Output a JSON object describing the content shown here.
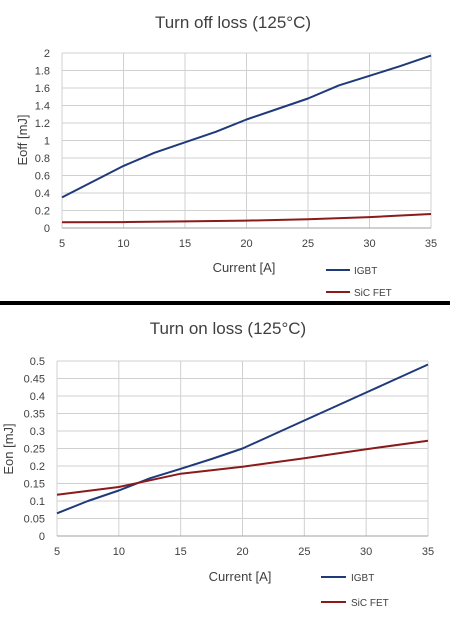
{
  "chart_data": [
    {
      "type": "line",
      "title": "Turn off loss (125°C)",
      "xlabel": "Current [A]",
      "ylabel": "Eoff [mJ]",
      "xlim": [
        5,
        35
      ],
      "ylim": [
        0,
        2
      ],
      "xticks": [
        5,
        10,
        15,
        20,
        25,
        30,
        35
      ],
      "yticks": [
        0,
        0.2,
        0.4,
        0.6,
        0.8,
        1,
        1.2,
        1.4,
        1.6,
        1.8,
        2
      ],
      "grid": true,
      "legend_position": "bottom-right",
      "series": [
        {
          "name": "IGBT",
          "color": "#1f3a7a",
          "x": [
            5,
            7.5,
            10,
            12.5,
            15,
            17.5,
            20,
            22.5,
            25,
            27.5,
            30,
            32.5,
            35
          ],
          "y": [
            0.35,
            0.53,
            0.71,
            0.86,
            0.98,
            1.1,
            1.24,
            1.36,
            1.48,
            1.63,
            1.74,
            1.85,
            1.97
          ]
        },
        {
          "name": "SiC FET",
          "color": "#8b1a1a",
          "x": [
            5,
            10,
            15,
            20,
            25,
            30,
            35
          ],
          "y": [
            0.065,
            0.068,
            0.075,
            0.085,
            0.1,
            0.125,
            0.16
          ]
        }
      ]
    },
    {
      "type": "line",
      "title": "Turn on loss (125°C)",
      "xlabel": "Current [A]",
      "ylabel": "Eon [mJ]",
      "xlim": [
        5,
        35
      ],
      "ylim": [
        0,
        0.5
      ],
      "xticks": [
        5,
        10,
        15,
        20,
        25,
        30,
        35
      ],
      "yticks": [
        0,
        0.05,
        0.1,
        0.15,
        0.2,
        0.25,
        0.3,
        0.35,
        0.4,
        0.45,
        0.5
      ],
      "grid": true,
      "legend_position": "bottom-right",
      "series": [
        {
          "name": "IGBT",
          "color": "#1f3a7a",
          "x": [
            5,
            7.5,
            10,
            12.5,
            15,
            17.5,
            20,
            22.5,
            25,
            27.5,
            30,
            32.5,
            35
          ],
          "y": [
            0.065,
            0.1,
            0.13,
            0.165,
            0.192,
            0.22,
            0.25,
            0.29,
            0.33,
            0.37,
            0.41,
            0.45,
            0.49
          ]
        },
        {
          "name": "SiC FET",
          "color": "#8b1a1a",
          "x": [
            5,
            10,
            15,
            20,
            25,
            30,
            35
          ],
          "y": [
            0.118,
            0.14,
            0.178,
            0.198,
            0.222,
            0.248,
            0.272
          ]
        }
      ]
    }
  ]
}
